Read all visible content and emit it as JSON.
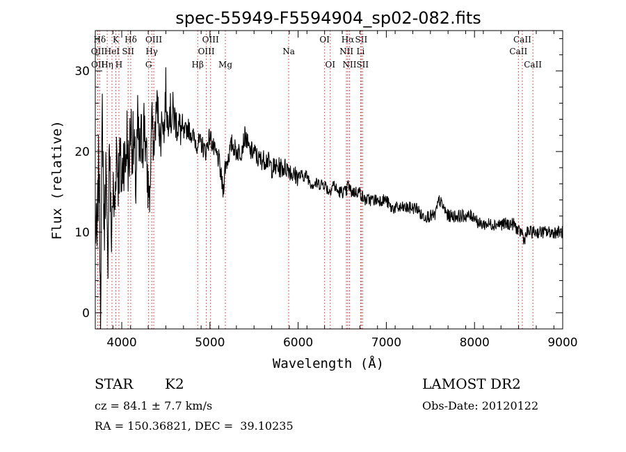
{
  "chart_data": {
    "type": "line",
    "title": "spec-55949-F5594904_sp02-082.fits",
    "xlabel": "Wavelength (Å)",
    "ylabel": "Flux (relative)",
    "xlim": [
      3700,
      9000
    ],
    "ylim": [
      -2,
      35
    ],
    "xticks": [
      4000,
      5000,
      6000,
      7000,
      8000,
      9000
    ],
    "yticks": [
      0,
      10,
      20,
      30
    ],
    "grid": false,
    "line_color": "#000000",
    "marker_color": "#d62728",
    "series": [
      {
        "x": [
          3700,
          3720,
          3740,
          3760,
          3780,
          3800,
          3820,
          3840,
          3860,
          3880,
          3900,
          3920,
          3940,
          3960,
          3980,
          4000,
          4020,
          4040,
          4060,
          4080,
          4100,
          4120,
          4140,
          4160,
          4180,
          4200,
          4220,
          4240,
          4260,
          4280,
          4300,
          4320,
          4340,
          4360,
          4380,
          4400,
          4420,
          4440,
          4460,
          4480,
          4500,
          4520,
          4540,
          4560,
          4580,
          4600,
          4650,
          4700,
          4750,
          4800,
          4850,
          4900,
          4950,
          5000,
          5050,
          5100,
          5150,
          5170,
          5200,
          5250,
          5300,
          5350,
          5400,
          5450,
          5500,
          5550,
          5600,
          5650,
          5700,
          5750,
          5800,
          5850,
          5890,
          5950,
          6000,
          6050,
          6100,
          6150,
          6200,
          6250,
          6300,
          6350,
          6400,
          6450,
          6500,
          6550,
          6563,
          6600,
          6650,
          6700,
          6750,
          6800,
          6850,
          6900,
          6950,
          7000,
          7050,
          7100,
          7150,
          7200,
          7250,
          7300,
          7350,
          7400,
          7450,
          7500,
          7550,
          7600,
          7650,
          7700,
          7750,
          7800,
          7850,
          7900,
          7950,
          8000,
          8050,
          8100,
          8150,
          8200,
          8250,
          8300,
          8350,
          8400,
          8450,
          8500,
          8540,
          8560,
          8600,
          8650,
          8700,
          8750,
          8800,
          8850,
          8900,
          8950,
          9000
        ],
        "y": [
          11,
          8,
          20,
          2,
          25,
          10,
          18,
          5,
          22,
          9,
          15,
          12,
          21,
          17,
          19,
          16,
          20,
          18,
          22,
          17,
          24,
          21,
          20,
          16,
          23,
          19,
          21,
          22,
          24,
          18,
          16,
          14,
          25,
          20,
          23,
          26,
          24,
          21,
          25,
          22,
          28,
          23,
          26,
          24,
          25,
          24,
          23,
          22,
          23,
          22,
          21,
          21,
          20,
          22,
          20,
          19,
          15,
          18,
          19,
          21,
          20,
          20,
          22,
          20,
          20,
          19,
          19,
          19,
          18,
          18,
          18,
          18,
          18,
          17,
          17,
          17,
          17,
          16,
          16,
          16,
          16,
          15,
          16,
          15,
          15,
          15,
          16,
          15,
          15,
          15,
          14,
          14,
          14,
          14,
          14,
          14,
          13,
          13,
          13,
          13,
          13,
          13,
          13,
          12,
          12,
          12,
          12,
          14,
          13,
          12,
          12,
          12,
          12,
          12,
          12,
          12,
          11,
          11,
          11,
          11,
          11,
          11,
          11,
          11,
          11,
          10,
          10,
          9,
          10,
          10,
          10,
          10,
          10,
          10,
          10,
          10,
          10
        ]
      }
    ],
    "lines": [
      {
        "label": "Hδ",
        "x": 3750,
        "row": 1,
        "color": "#d62728"
      },
      {
        "label": "OII",
        "x": 3727,
        "row": 2,
        "color": "#d62728"
      },
      {
        "label": "OII",
        "x": 3729,
        "row": 3,
        "color": "#d62728"
      },
      {
        "label": "K",
        "x": 3933,
        "row": 1,
        "color": "#d62728"
      },
      {
        "label": "HeI",
        "x": 3889,
        "row": 2,
        "color": "#d62728"
      },
      {
        "label": "Hη",
        "x": 3835,
        "row": 3,
        "color": "#d62728"
      },
      {
        "label": "H",
        "x": 3968,
        "row": 3,
        "color": "#d62728"
      },
      {
        "label": "Hδ",
        "x": 4102,
        "row": 1,
        "color": "#d62728"
      },
      {
        "label": "SII",
        "x": 4072,
        "row": 2,
        "color": "#d62728"
      },
      {
        "label": "OIII",
        "x": 4363,
        "row": 1,
        "color": "#d62728"
      },
      {
        "label": "Hγ",
        "x": 4340,
        "row": 2,
        "color": "#d62728"
      },
      {
        "label": "G",
        "x": 4305,
        "row": 3,
        "color": "#d62728"
      },
      {
        "label": "OIII",
        "x": 5007,
        "row": 1,
        "color": "#d62728"
      },
      {
        "label": "OIII",
        "x": 4959,
        "row": 2,
        "color": "#d62728"
      },
      {
        "label": "Hβ",
        "x": 4861,
        "row": 3,
        "color": "#d62728"
      },
      {
        "label": "Mg",
        "x": 5175,
        "row": 3,
        "color": "#d62728"
      },
      {
        "label": "Na",
        "x": 5893,
        "row": 2,
        "color": "#d62728"
      },
      {
        "label": "OI",
        "x": 6300,
        "row": 1,
        "color": "#d62728"
      },
      {
        "label": "OI",
        "x": 6364,
        "row": 3,
        "color": "#d62728"
      },
      {
        "label": "Hα",
        "x": 6563,
        "row": 1,
        "color": "#d62728"
      },
      {
        "label": "SII",
        "x": 6716,
        "row": 1,
        "color": "#d62728"
      },
      {
        "label": "NII",
        "x": 6548,
        "row": 2,
        "color": "#d62728"
      },
      {
        "label": "Li",
        "x": 6708,
        "row": 2,
        "color": "#d62728"
      },
      {
        "label": "NII",
        "x": 6583,
        "row": 3,
        "color": "#d62728"
      },
      {
        "label": "SII",
        "x": 6731,
        "row": 3,
        "color": "#d62728"
      },
      {
        "label": "CaII",
        "x": 8542,
        "row": 1,
        "color": "#d62728"
      },
      {
        "label": "CaII",
        "x": 8498,
        "row": 2,
        "color": "#d62728"
      },
      {
        "label": "CaII",
        "x": 8662,
        "row": 3,
        "color": "#d62728"
      }
    ]
  },
  "info": {
    "class_label": "STAR",
    "subclass": "K2",
    "cz": "cz = 84.1 ± 7.7 km/s",
    "radec": "RA = 150.36821, DEC =  39.10235",
    "survey": "LAMOST DR2",
    "obsdate": "Obs-Date: 20120122"
  }
}
